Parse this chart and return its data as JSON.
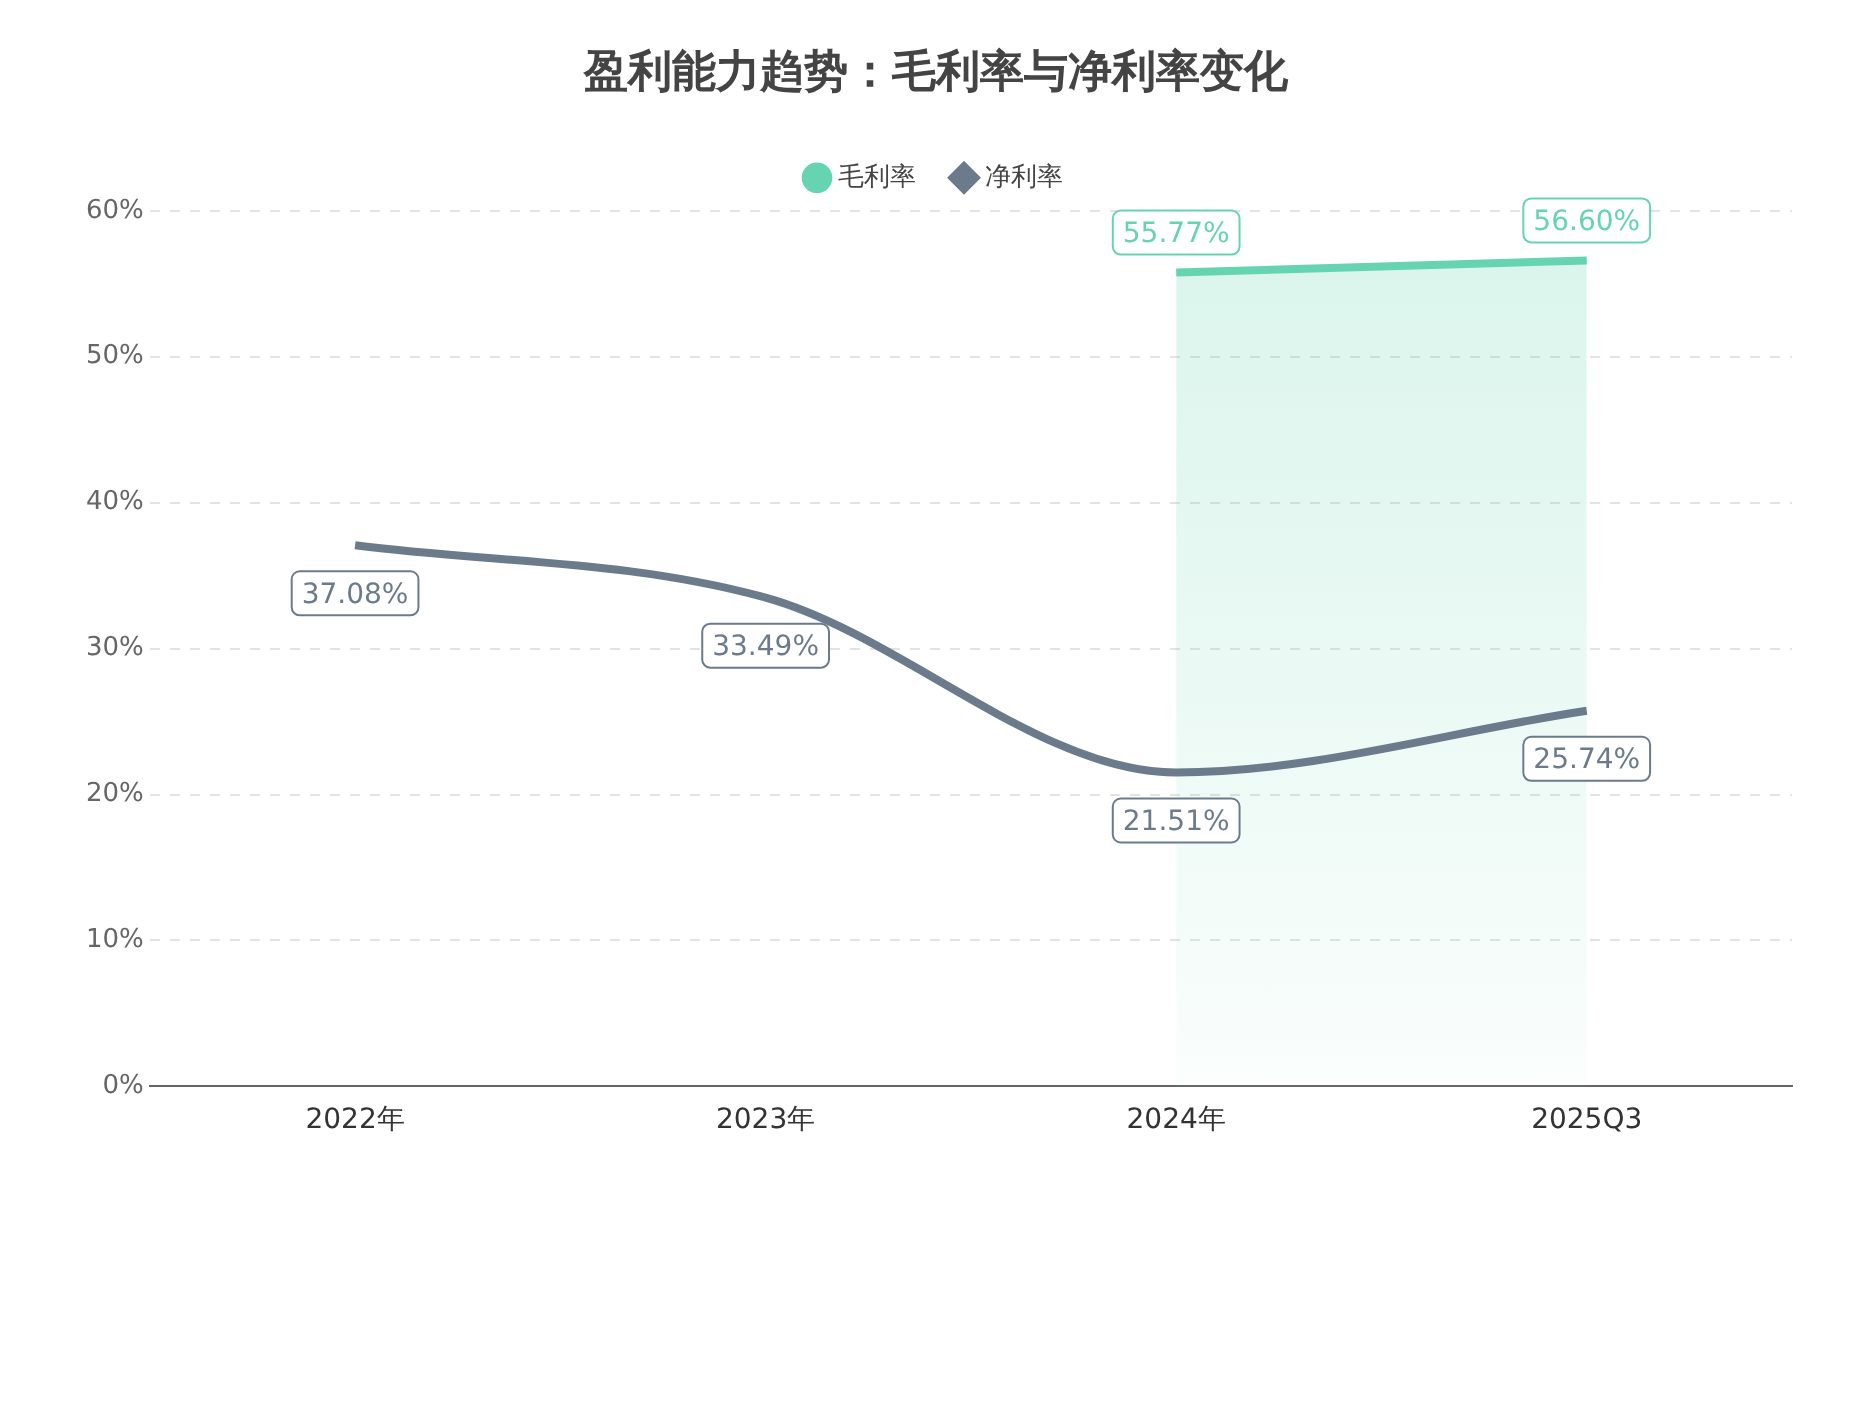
{
  "chart_data": {
    "type": "line",
    "title": "盈利能力趋势：毛利率与净利率变化",
    "categories": [
      "2022年",
      "2023年",
      "2024年",
      "2025Q3"
    ],
    "series": [
      {
        "name": "毛利率",
        "type": "area",
        "color": "#66d4b1",
        "values": [
          null,
          null,
          55.77,
          56.6
        ],
        "value_labels": [
          null,
          null,
          "55.77%",
          "56.60%"
        ]
      },
      {
        "name": "净利率",
        "color": "#6b7b8c",
        "values": [
          37.08,
          33.49,
          21.51,
          25.74
        ],
        "value_labels": [
          "37.08%",
          "33.49%",
          "21.51%",
          "25.74%"
        ]
      }
    ],
    "ylim": [
      0,
      60
    ],
    "yticks": [
      {
        "value": 0,
        "label": "0%"
      },
      {
        "value": 10,
        "label": "10%"
      },
      {
        "value": 20,
        "label": "20%"
      },
      {
        "value": 30,
        "label": "30%"
      },
      {
        "value": 40,
        "label": "40%"
      },
      {
        "value": 50,
        "label": "50%"
      },
      {
        "value": 60,
        "label": "60%"
      }
    ],
    "grid": "y",
    "legend": "top",
    "marker": "none"
  }
}
